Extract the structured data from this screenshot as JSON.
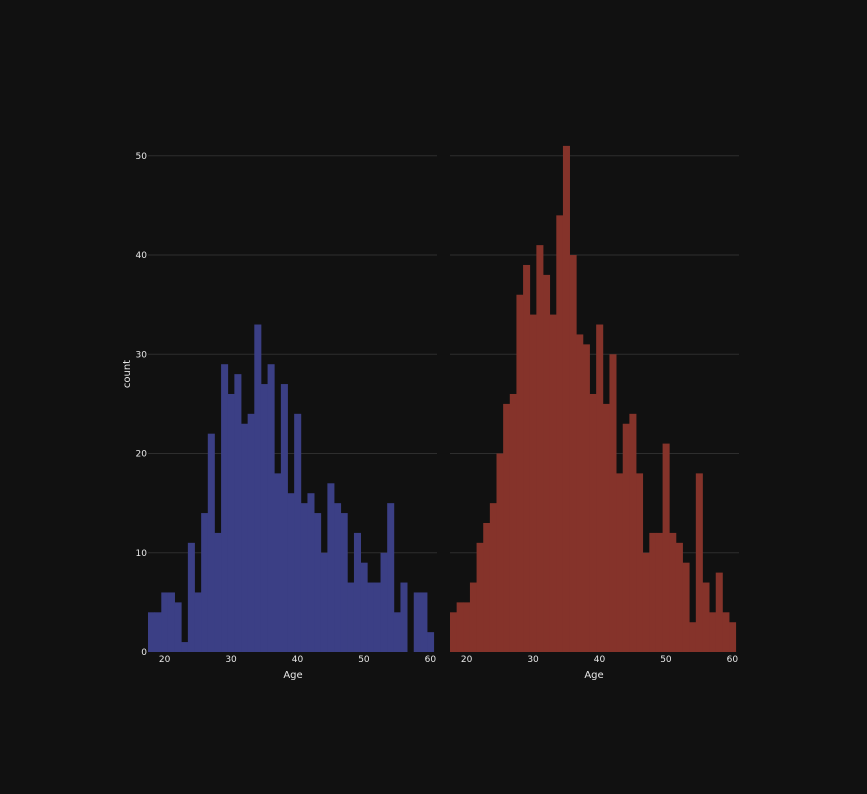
{
  "chart_data": [
    {
      "type": "bar",
      "subplot": "left",
      "bar_color": "#3b3f85",
      "xlabel": "Age",
      "ylabel": "count",
      "xlim": [
        17.5,
        61
      ],
      "ylim": [
        0,
        52.5
      ],
      "xticks": [
        20,
        30,
        40,
        50,
        60
      ],
      "yticks": [
        0,
        10,
        20,
        30,
        40,
        50
      ],
      "bins": {
        "start": 18,
        "width": 1
      },
      "x": [
        18,
        19,
        20,
        21,
        22,
        23,
        24,
        25,
        26,
        27,
        28,
        29,
        30,
        31,
        32,
        33,
        34,
        35,
        36,
        37,
        38,
        39,
        40,
        41,
        42,
        43,
        44,
        45,
        46,
        47,
        48,
        49,
        50,
        51,
        52,
        53,
        54,
        55,
        56,
        57,
        58,
        59,
        60
      ],
      "values": [
        4,
        4,
        6,
        6,
        5,
        1,
        11,
        6,
        14,
        22,
        12,
        29,
        26,
        28,
        23,
        24,
        33,
        27,
        29,
        18,
        27,
        16,
        24,
        15,
        16,
        14,
        10,
        17,
        15,
        14,
        7,
        12,
        9,
        7,
        7,
        10,
        15,
        4,
        7,
        0,
        6,
        6,
        2
      ]
    },
    {
      "type": "bar",
      "subplot": "right",
      "bar_color": "#85332a",
      "xlabel": "Age",
      "ylabel": "",
      "xlim": [
        17.5,
        61
      ],
      "ylim": [
        0,
        52.5
      ],
      "xticks": [
        20,
        30,
        40,
        50,
        60
      ],
      "yticks": [
        0,
        10,
        20,
        30,
        40,
        50
      ],
      "bins": {
        "start": 18,
        "width": 1
      },
      "x": [
        18,
        19,
        20,
        21,
        22,
        23,
        24,
        25,
        26,
        27,
        28,
        29,
        30,
        31,
        32,
        33,
        34,
        35,
        36,
        37,
        38,
        39,
        40,
        41,
        42,
        43,
        44,
        45,
        46,
        47,
        48,
        49,
        50,
        51,
        52,
        53,
        54,
        55,
        56,
        57,
        58,
        59,
        60
      ],
      "values": [
        4,
        5,
        5,
        7,
        11,
        13,
        15,
        20,
        25,
        26,
        36,
        39,
        34,
        41,
        38,
        34,
        44,
        51,
        40,
        32,
        31,
        26,
        33,
        25,
        30,
        18,
        23,
        24,
        18,
        10,
        12,
        12,
        21,
        12,
        11,
        9,
        3,
        18,
        7,
        4,
        8,
        4,
        3
      ]
    }
  ],
  "colors": {
    "background": "#111111",
    "grid": "#2e2e2e",
    "text": "#e8e8e8"
  }
}
